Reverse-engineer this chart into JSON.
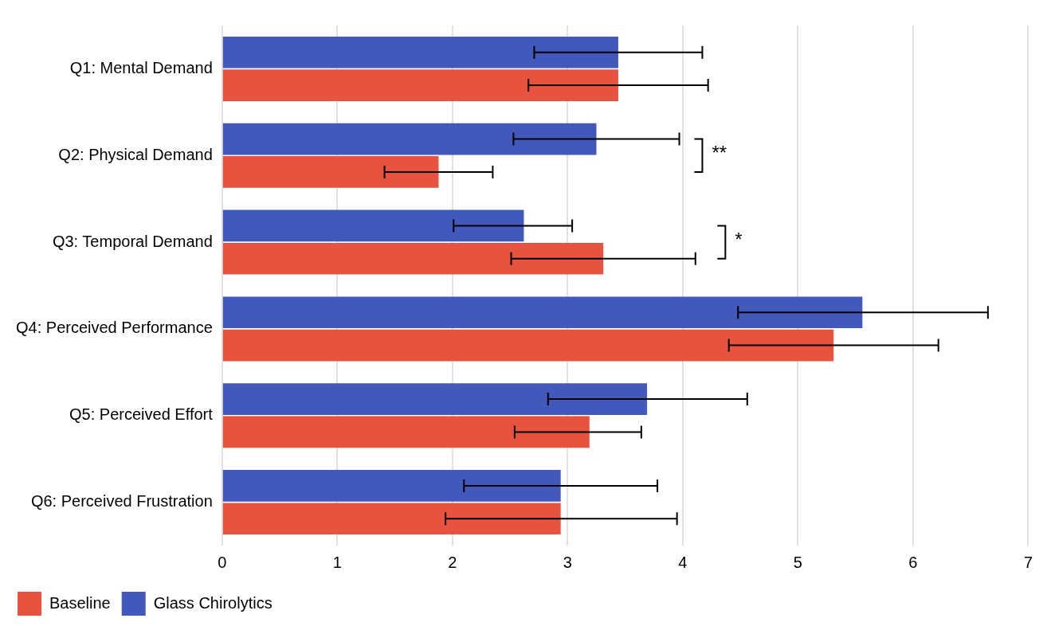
{
  "chart_data": {
    "type": "bar",
    "orientation": "horizontal",
    "categories": [
      "Q1: Mental Demand",
      "Q2: Physical Demand",
      "Q3: Temporal Demand",
      "Q4: Perceived Performance",
      "Q5: Perceived Effort",
      "Q6: Perceived Frustration"
    ],
    "series": [
      {
        "name": "Baseline",
        "color": "#e8533f",
        "values": [
          3.44,
          1.88,
          3.31,
          5.31,
          3.19,
          2.94
        ],
        "errors": [
          [
            2.66,
            4.22
          ],
          [
            1.41,
            2.35
          ],
          [
            2.51,
            4.11
          ],
          [
            4.4,
            6.22
          ],
          [
            2.54,
            3.64
          ],
          [
            1.94,
            3.95
          ]
        ]
      },
      {
        "name": "Glass Chirolytics",
        "color": "#4358bb",
        "values": [
          3.44,
          3.25,
          2.62,
          5.56,
          3.69,
          2.94
        ],
        "errors": [
          [
            2.71,
            4.17
          ],
          [
            2.53,
            3.97
          ],
          [
            2.01,
            3.04
          ],
          [
            4.48,
            6.65
          ],
          [
            2.83,
            4.56
          ],
          [
            2.1,
            3.78
          ]
        ]
      }
    ],
    "xlim": [
      0,
      7
    ],
    "xticks": [
      0,
      1,
      2,
      3,
      4,
      5,
      6,
      7
    ],
    "grid": "x",
    "legend": "bottom left",
    "annotations": [
      "**",
      "*"
    ]
  }
}
